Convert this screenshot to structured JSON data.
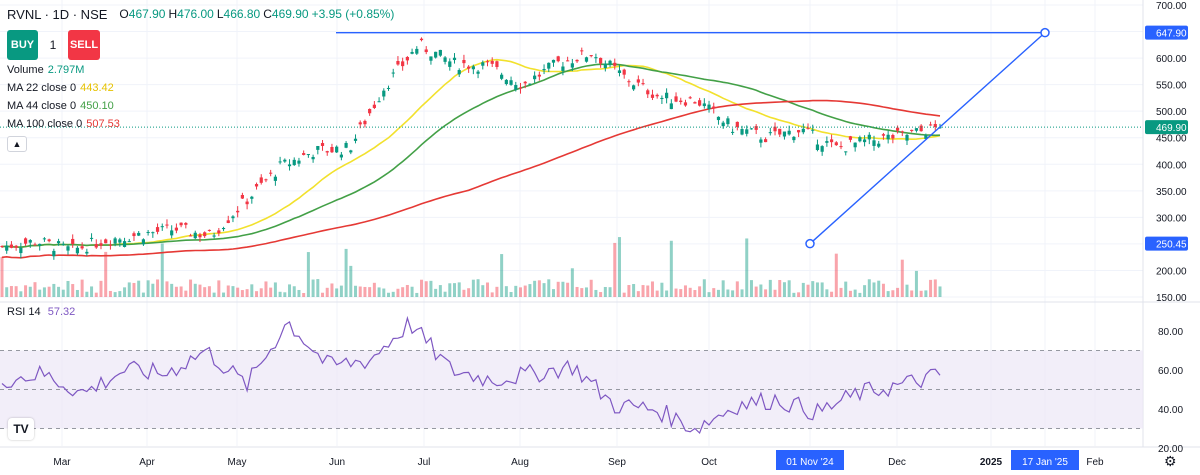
{
  "header": {
    "symbol": "RVNL · 1D · NSE",
    "ohlc": [
      {
        "label": "O",
        "value": "467.90"
      },
      {
        "label": "H",
        "value": "476.00"
      },
      {
        "label": "L",
        "value": "466.80"
      },
      {
        "label": "C",
        "value": "469.90"
      }
    ],
    "change": "+3.95 (+0.85%)"
  },
  "trade": {
    "buy_label": "BUY",
    "sell_label": "SELL",
    "quantity": "1"
  },
  "indicators": [
    {
      "name": "Volume",
      "value": "2.797M",
      "color": "#089981"
    },
    {
      "name": "MA 22 close 0",
      "value": "443.42",
      "color": "#f2e12d"
    },
    {
      "name": "MA 44 close 0",
      "value": "450.10",
      "color": "#43a047"
    },
    {
      "name": "MA 100 close 0",
      "value": "507.53",
      "color": "#e53935"
    }
  ],
  "rsi_panel": {
    "name": "RSI 14",
    "value": "57.32"
  },
  "logo_text": "TV",
  "icons": {
    "collapse": "chevron-up-icon",
    "settings": "gear-icon",
    "logo": "tradingview-logo-icon"
  },
  "colors": {
    "up": "#089981",
    "down": "#f23645",
    "trendline": "#2962ff",
    "rsi": "#7e57c2",
    "rsi_band": "#ede7f6"
  },
  "chart_data": {
    "type": "candlestick",
    "price_axis": {
      "range": [
        150,
        700
      ],
      "ticks": [
        "700.00",
        "650.00",
        "600.00",
        "550.00",
        "500.00",
        "450.00",
        "400.00",
        "350.00",
        "300.00",
        "250.00",
        "200.00",
        "150.00"
      ]
    },
    "rsi_axis": {
      "range": [
        20,
        90
      ],
      "ticks": [
        "80.00",
        "60.00",
        "40.00",
        "20.00"
      ],
      "bands": [
        30,
        70
      ],
      "mid": 50
    },
    "x_ticks": [
      "Mar",
      "Apr",
      "May",
      "Jun",
      "Jul",
      "Aug",
      "Sep",
      "Oct",
      "01 Nov '24",
      "Dec",
      "2025",
      "17 Jan '25",
      "Feb"
    ],
    "price_labels": [
      {
        "value": "647.90",
        "kind": "trendline"
      },
      {
        "value": "469.90",
        "kind": "last"
      },
      {
        "value": "250.45",
        "kind": "trendline"
      }
    ],
    "trendlines": [
      {
        "from": {
          "date": "15 Jul '24",
          "price": 647.9
        },
        "to": {
          "date": "17 Jan '25",
          "price": 647.9
        },
        "kind": "horizontal"
      },
      {
        "from": {
          "date": "01 Nov '24",
          "price": 250.45
        },
        "to": {
          "date": "17 Jan '25",
          "price": 647.9
        },
        "kind": "ray"
      }
    ],
    "close_path": [
      [
        "Feb 2024",
        245
      ],
      [
        "Mar",
        255
      ],
      [
        "Mar (late)",
        238
      ],
      [
        "Apr",
        258
      ],
      [
        "Apr (late)",
        268
      ],
      [
        "May",
        278
      ],
      [
        "May (late)",
        265
      ],
      [
        "Jun",
        330
      ],
      [
        "Jun (mid)",
        395
      ],
      [
        "Jun (late)",
        425
      ],
      [
        "Jul",
        430
      ],
      [
        "Jul (early)",
        545
      ],
      [
        "Jul (mid)",
        625
      ],
      [
        "Jul (late)",
        590
      ],
      [
        "Aug",
        585
      ],
      [
        "Aug (mid)",
        550
      ],
      [
        "Aug (late)",
        590
      ],
      [
        "Sep",
        610
      ],
      [
        "Sep (mid)",
        560
      ],
      [
        "Sep (late)",
        525
      ],
      [
        "Oct",
        520
      ],
      [
        "Oct (mid)",
        470
      ],
      [
        "Oct (late)",
        450
      ],
      [
        "Nov",
        465
      ],
      [
        "Nov (mid)",
        430
      ],
      [
        "Nov (late)",
        445
      ],
      [
        "Dec",
        455
      ],
      [
        "Dec (mid)",
        469.9
      ]
    ],
    "rsi_path": [
      [
        "Feb 2024",
        55
      ],
      [
        "Mar",
        58
      ],
      [
        "Mar (late)",
        48
      ],
      [
        "Apr",
        60
      ],
      [
        "Apr (late)",
        58
      ],
      [
        "May",
        70
      ],
      [
        "May (late)",
        52
      ],
      [
        "Jun",
        85
      ],
      [
        "Jun (late)",
        62
      ],
      [
        "Jul",
        65
      ],
      [
        "Jul (mid)",
        84
      ],
      [
        "Jul (late)",
        60
      ],
      [
        "Aug",
        55
      ],
      [
        "Aug (late)",
        58
      ],
      [
        "Sep",
        62
      ],
      [
        "Sep (mid)",
        42
      ],
      [
        "Oct",
        40
      ],
      [
        "Oct (mid)",
        30
      ],
      [
        "Oct (late)",
        42
      ],
      [
        "Nov",
        45
      ],
      [
        "Nov (mid)",
        38
      ],
      [
        "Nov (late)",
        48
      ],
      [
        "Dec",
        52
      ],
      [
        "Dec (mid)",
        57.32
      ]
    ]
  }
}
